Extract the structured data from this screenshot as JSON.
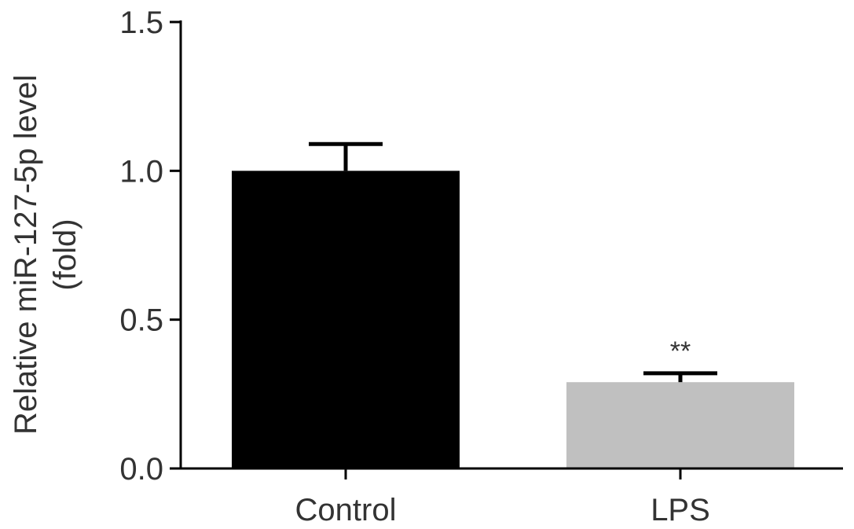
{
  "chart_data": {
    "type": "bar",
    "title": "",
    "xlabel": "",
    "ylabel_lines": [
      "Relative miR-127-5p level",
      "(fold)"
    ],
    "ylim": [
      0,
      1.5
    ],
    "yticks": [
      0.0,
      0.5,
      1.0,
      1.5
    ],
    "ytick_labels": [
      "0.0",
      "0.5",
      "1.0",
      "1.5"
    ],
    "categories": [
      "Control",
      "LPS"
    ],
    "values": [
      1.0,
      0.29
    ],
    "errors": [
      0.09,
      0.03
    ],
    "bar_colors": [
      "#000000",
      "#c0c0c0"
    ],
    "annotations": [
      "",
      "**"
    ],
    "grid": false,
    "legend": "none"
  }
}
